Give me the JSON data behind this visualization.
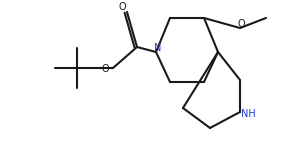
{
  "bg": "#ffffff",
  "lc": "#1a1a1a",
  "N_color": "#1a3ccd",
  "lw": 1.5,
  "fs": 7.0,
  "figsize": [
    2.86,
    1.44
  ],
  "dpi": 100,
  "xlim": [
    0,
    286
  ],
  "ylim": [
    0,
    144
  ]
}
